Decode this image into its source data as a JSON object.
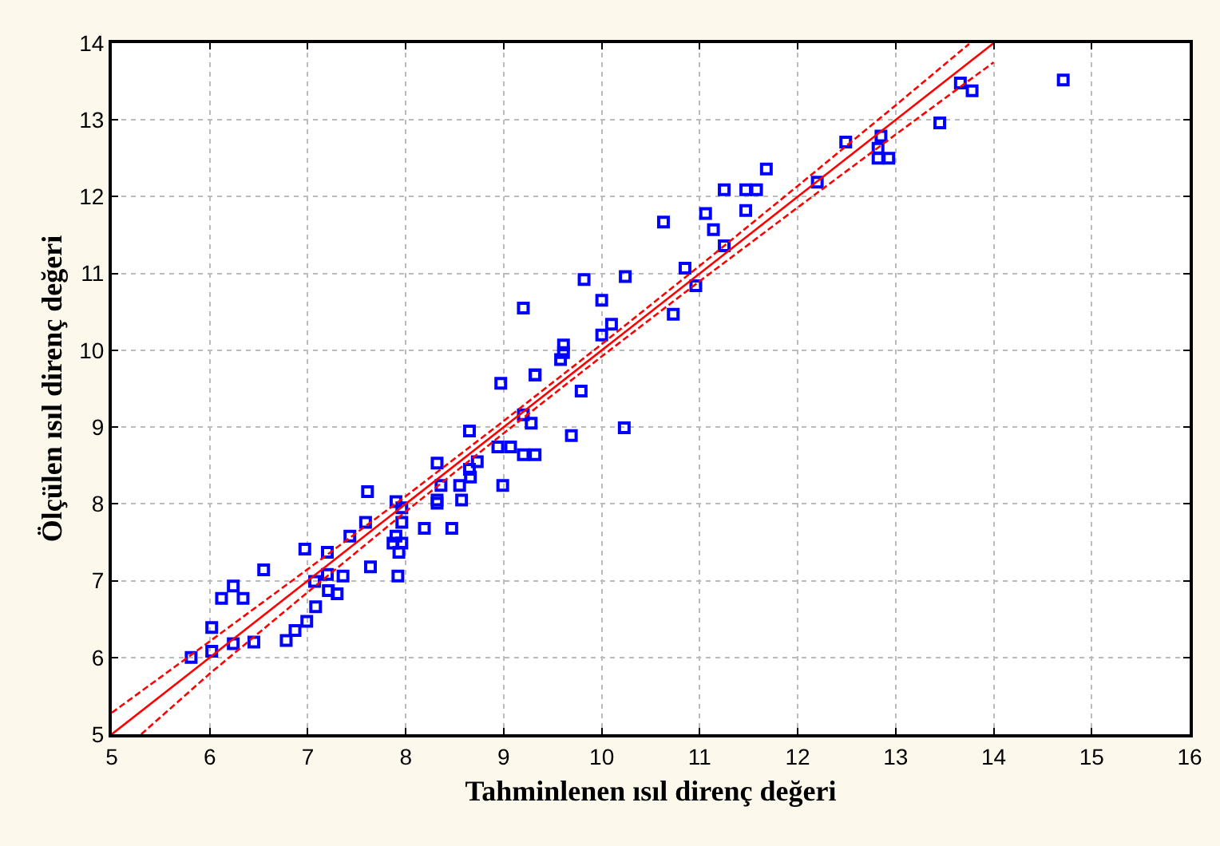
{
  "chart_data": {
    "type": "scatter",
    "xlabel": "Tahminlenen ısıl direnç değeri",
    "ylabel": "Ölçülen ısıl direnç değeri",
    "xlim": [
      5,
      16
    ],
    "xticks": [
      5,
      6,
      7,
      8,
      9,
      10,
      11,
      12,
      13,
      14,
      15,
      16
    ],
    "ylim": [
      5,
      14
    ],
    "yticks": [
      5,
      6,
      7,
      8,
      9,
      10,
      11,
      12,
      13,
      14
    ],
    "grid": true,
    "marker": "square",
    "series": [
      {
        "color": "#0000ff",
        "x": [
          5.81,
          6.02,
          6.02,
          6.24,
          6.24,
          6.12,
          6.34,
          6.45,
          6.55,
          6.78,
          6.87,
          6.99,
          7.08,
          6.97,
          7.07,
          7.2,
          7.2,
          7.21,
          7.3,
          7.36,
          7.43,
          7.59,
          7.61,
          7.64,
          7.87,
          7.9,
          7.9,
          7.92,
          7.93,
          7.96,
          7.96,
          7.96,
          8.19,
          8.32,
          8.32,
          8.32,
          8.36,
          8.47,
          8.55,
          8.57,
          8.65,
          8.65,
          8.66,
          8.73,
          8.94,
          8.97,
          8.99,
          9.07,
          9.2,
          9.2,
          9.2,
          9.28,
          9.32,
          9.32,
          9.32,
          9.58,
          9.61,
          9.61,
          9.69,
          9.79,
          9.82,
          10.0,
          10.0,
          10.1,
          10.23,
          10.24,
          10.63,
          10.73,
          10.85,
          10.96,
          11.06,
          11.14,
          11.25,
          11.25,
          11.47,
          11.47,
          11.58,
          11.68,
          12.2,
          12.49,
          12.82,
          12.82,
          12.85,
          12.93,
          13.45,
          13.66,
          13.78,
          14.71
        ],
        "values": [
          6.0,
          6.08,
          6.39,
          6.18,
          6.93,
          6.77,
          6.77,
          6.2,
          7.14,
          6.22,
          6.35,
          6.47,
          6.66,
          7.41,
          6.99,
          7.37,
          7.08,
          6.87,
          6.83,
          7.06,
          7.58,
          7.76,
          8.16,
          7.18,
          7.49,
          8.03,
          7.58,
          7.06,
          7.37,
          7.95,
          7.76,
          7.49,
          7.68,
          8.53,
          8.05,
          8.01,
          8.24,
          7.68,
          8.24,
          8.05,
          8.95,
          8.45,
          8.35,
          8.55,
          8.74,
          9.57,
          8.24,
          8.74,
          9.16,
          8.64,
          10.55,
          9.05,
          9.68,
          8.64,
          9.68,
          9.88,
          10.07,
          9.97,
          8.89,
          9.47,
          10.92,
          10.65,
          10.2,
          10.34,
          8.99,
          10.96,
          11.67,
          10.47,
          11.07,
          10.84,
          11.78,
          11.57,
          11.36,
          12.09,
          12.09,
          11.82,
          12.09,
          12.36,
          12.19,
          12.71,
          12.63,
          12.5,
          12.79,
          12.5,
          12.96,
          13.48,
          13.38,
          13.52
        ]
      },
      {
        "type": "line",
        "color": "#ff0000",
        "line_style": "solid",
        "marker": "none",
        "x": [
          5,
          14
        ],
        "values": [
          5,
          14
        ]
      },
      {
        "type": "line",
        "color": "#ff0000",
        "line_style": "dashed",
        "marker": "none",
        "x": [
          5,
          6,
          7,
          8,
          9,
          10,
          11,
          12,
          13,
          13.75
        ],
        "values": [
          5.28,
          6.21,
          7.15,
          8.1,
          9.08,
          10.08,
          11.1,
          12.14,
          13.19,
          13.99
        ]
      },
      {
        "type": "line",
        "color": "#ff0000",
        "line_style": "dashed",
        "marker": "none",
        "x": [
          5.3,
          6,
          7,
          8,
          9,
          10,
          11,
          12,
          13,
          14
        ],
        "values": [
          5.0,
          5.79,
          6.85,
          7.9,
          8.92,
          9.92,
          10.9,
          11.86,
          12.81,
          13.75
        ]
      }
    ]
  }
}
